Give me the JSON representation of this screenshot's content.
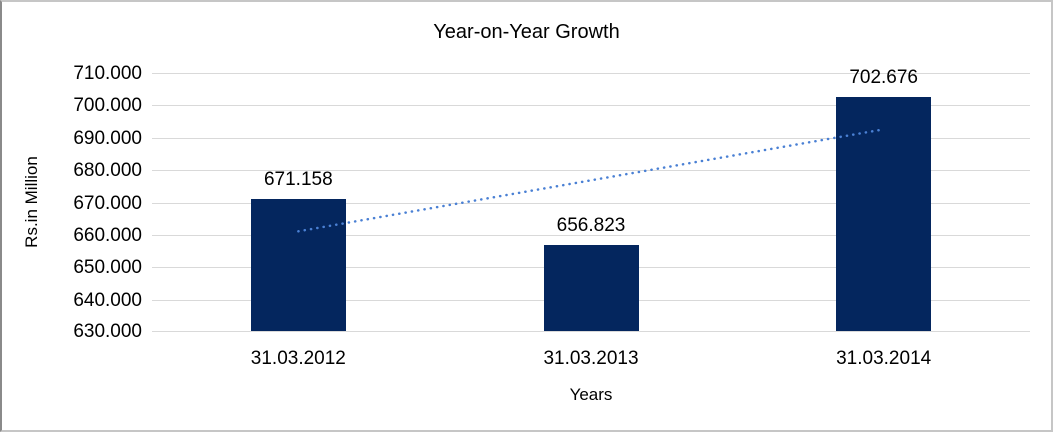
{
  "window": {
    "background_color": "#ffffff",
    "border_color": "#c6c6c6"
  },
  "chart_data": {
    "type": "bar",
    "title": "Year-on-Year Growth",
    "xlabel": "Years",
    "ylabel": "Rs.in Million",
    "categories": [
      "31.03.2012",
      "31.03.2013",
      "31.03.2014"
    ],
    "values": [
      671.158,
      656.823,
      702.676
    ],
    "data_labels": [
      "671.158",
      "656.823",
      "702.676"
    ],
    "ylim": [
      630,
      710
    ],
    "ytick_step": 10,
    "ytick_labels": [
      "710.000",
      "700.000",
      "690.000",
      "680.000",
      "670.000",
      "660.000",
      "650.000",
      "640.000",
      "630.000"
    ],
    "grid": true,
    "legend": false,
    "bar_color": "#04265e",
    "gridline_color": "#d9d9d9",
    "text_color": "#000000",
    "trendline": {
      "type": "linear",
      "style": "dotted",
      "color": "#4a80d4",
      "start_value": 661.1,
      "end_value": 692.6
    }
  }
}
